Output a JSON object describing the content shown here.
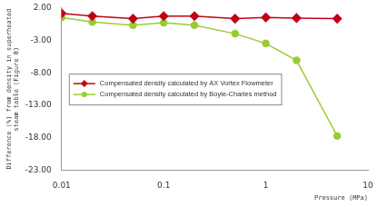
{
  "chart_data": {
    "type": "line",
    "x_label": "Pressure (MPa)",
    "y_label": "Difference (%) from density in superheated steam table (Figure 8)",
    "x": [
      0.01,
      0.02,
      0.05,
      0.1,
      0.2,
      0.5,
      1,
      2,
      5
    ],
    "series": [
      {
        "name": "Compensated density calculated by AX Vortex Flowmeter",
        "color": "#c00018",
        "marker": "diamond",
        "line_style": "solid",
        "values": [
          1.1,
          0.7,
          0.3,
          0.7,
          0.7,
          0.3,
          0.5,
          0.4,
          0.3
        ]
      },
      {
        "name": "Compensated density calculated by Boyle-Charles method",
        "color": "#99cc33",
        "marker": "circle",
        "line_style": "solid",
        "values": [
          0.5,
          -0.2,
          -0.7,
          -0.3,
          -0.7,
          -2.0,
          -3.5,
          -6.1,
          -17.7
        ]
      }
    ],
    "log": "x",
    "xlim": [
      0.01,
      10
    ],
    "xticks": [
      0.01,
      0.1,
      1,
      10
    ],
    "ylim": [
      -23,
      2
    ],
    "yticks": [
      {
        "value": -23,
        "label": "-23.00"
      },
      {
        "value": -18,
        "label": "-18.00"
      },
      {
        "value": -13,
        "label": "-13.00"
      },
      {
        "value": -8,
        "label": "-8.00"
      },
      {
        "value": -3,
        "label": "-3.00"
      },
      {
        "value": 2,
        "label": "2.00"
      }
    ],
    "grid": false,
    "legend": "left"
  }
}
